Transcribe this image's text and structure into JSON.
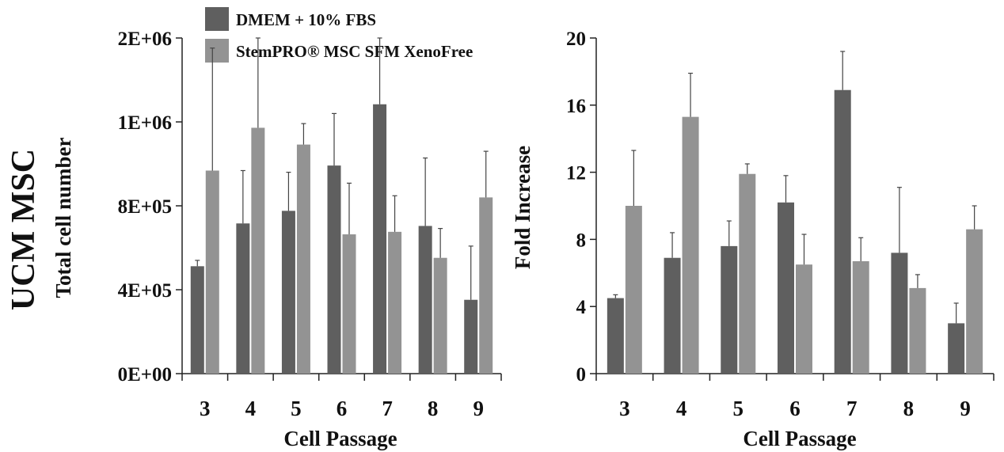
{
  "figure": {
    "side_label": "UCM MSC"
  },
  "legend": {
    "items": [
      {
        "label": "DMEM + 10% FBS",
        "color": "#5f5f5f"
      },
      {
        "label": "StemPRO® MSC SFM XenoFree",
        "color": "#939393"
      }
    ]
  },
  "chart_data": [
    {
      "type": "bar",
      "title": "",
      "xlabel": "Cell Passage",
      "ylabel": "Total cell number",
      "categories": [
        "3",
        "4",
        "5",
        "6",
        "7",
        "8",
        "9"
      ],
      "ylim": [
        0,
        4
      ],
      "yticks": [
        0,
        1,
        2,
        3,
        4
      ],
      "ytick_labels": [
        "0E+00",
        "4E+05",
        "8E+05",
        "1E+06",
        "2E+06"
      ],
      "axis_note": "y axis tick labels are printed as 0E+00, 4E+05, 8E+05, 1E+06, 2E+06 at equal spacing; values below are in tick-interval units",
      "grid": false,
      "legend_position": "top",
      "series": [
        {
          "name": "DMEM + 10% FBS",
          "color": "#5f5f5f",
          "values": [
            1.28,
            1.79,
            1.94,
            2.48,
            3.21,
            1.76,
            0.88
          ],
          "errors": [
            0.07,
            0.63,
            0.46,
            0.62,
            1.11,
            0.81,
            0.64
          ]
        },
        {
          "name": "StemPRO® MSC SFM XenoFree",
          "color": "#939393",
          "values": [
            2.42,
            2.93,
            2.73,
            1.66,
            1.69,
            1.38,
            2.1
          ],
          "errors": [
            1.46,
            1.11,
            0.25,
            0.61,
            0.43,
            0.35,
            0.55
          ]
        }
      ]
    },
    {
      "type": "bar",
      "title": "",
      "xlabel": "Cell Passage",
      "ylabel": "Fold Increase",
      "categories": [
        "3",
        "4",
        "5",
        "6",
        "7",
        "8",
        "9"
      ],
      "ylim": [
        0,
        20
      ],
      "yticks": [
        0,
        4,
        8,
        12,
        16,
        20
      ],
      "ytick_labels": [
        "0",
        "4",
        "8",
        "12",
        "16",
        "20"
      ],
      "grid": false,
      "series": [
        {
          "name": "DMEM + 10% FBS",
          "color": "#5f5f5f",
          "values": [
            4.5,
            6.9,
            7.6,
            10.2,
            16.9,
            7.2,
            3.0
          ],
          "errors": [
            0.2,
            1.5,
            1.5,
            1.6,
            2.3,
            3.9,
            1.2
          ]
        },
        {
          "name": "StemPRO® MSC SFM XenoFree",
          "color": "#939393",
          "values": [
            10.0,
            15.3,
            11.9,
            6.5,
            6.7,
            5.1,
            8.6
          ],
          "errors": [
            3.3,
            2.6,
            0.6,
            1.8,
            1.4,
            0.8,
            1.4
          ]
        }
      ]
    }
  ]
}
